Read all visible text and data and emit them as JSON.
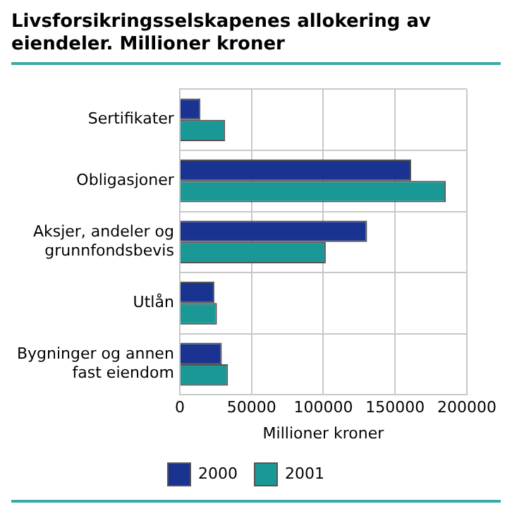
{
  "chart_data": {
    "type": "bar",
    "orientation": "horizontal",
    "title": "Livsforsikringsselskapenes allokering av eiendeler. Millioner kroner",
    "xlabel": "Millioner kroner",
    "categories": [
      "Sertifikater",
      "Obligasjoner",
      "Aksjer, andeler og grunnfondsbevis",
      "Utlån",
      "Bygninger og annen fast eiendom"
    ],
    "series": [
      {
        "name": "2000",
        "color": "#1a3290",
        "values": [
          14400,
          161200,
          130500,
          24100,
          29300
        ]
      },
      {
        "name": "2001",
        "color": "#1a9896",
        "values": [
          31600,
          185300,
          101700,
          25900,
          33600
        ]
      }
    ],
    "xlim": [
      0,
      200000
    ],
    "xticks": [
      0,
      50000,
      100000,
      150000,
      200000
    ],
    "grid": true,
    "legend": "bottom"
  }
}
